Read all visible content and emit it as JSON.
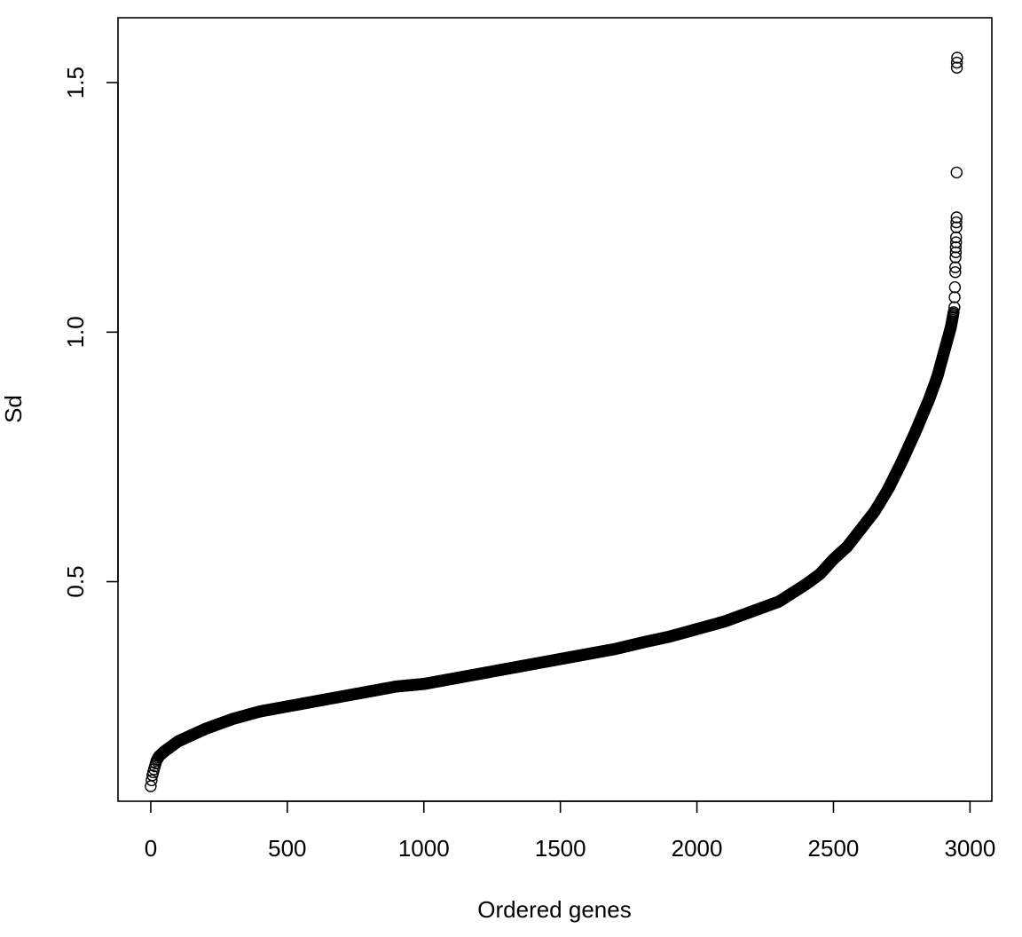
{
  "chart_data": {
    "type": "scatter",
    "title": "",
    "xlabel": "Ordered genes",
    "ylabel": "Sd",
    "xlim": [
      -120,
      3080
    ],
    "ylim": [
      0.06,
      1.63
    ],
    "x_ticks": [
      0,
      500,
      1000,
      1500,
      2000,
      2500,
      3000
    ],
    "x_tick_labels": [
      "0",
      "500",
      "1000",
      "1500",
      "2000",
      "2500",
      "3000"
    ],
    "y_ticks": [
      0.5,
      1.0,
      1.5
    ],
    "y_tick_labels": [
      "0.5",
      "1.0",
      "1.5"
    ],
    "grid": false,
    "legend": "none",
    "marker": "open-circle",
    "color": "#000000",
    "series": [
      {
        "n_points": 2950,
        "curve_x": [
          0,
          5,
          10,
          20,
          30,
          50,
          100,
          200,
          300,
          400,
          500,
          600,
          700,
          800,
          900,
          1000,
          1100,
          1200,
          1300,
          1400,
          1500,
          1600,
          1700,
          1800,
          1900,
          2000,
          2100,
          2200,
          2300,
          2400,
          2450,
          2500,
          2550,
          2600,
          2650,
          2700,
          2750,
          2800,
          2850,
          2880,
          2900,
          2910,
          2920,
          2930,
          2940
        ],
        "curve_y": [
          0.09,
          0.11,
          0.12,
          0.14,
          0.15,
          0.16,
          0.18,
          0.205,
          0.225,
          0.24,
          0.25,
          0.26,
          0.27,
          0.28,
          0.29,
          0.295,
          0.305,
          0.315,
          0.325,
          0.335,
          0.345,
          0.355,
          0.365,
          0.378,
          0.39,
          0.405,
          0.42,
          0.44,
          0.46,
          0.495,
          0.515,
          0.545,
          0.57,
          0.605,
          0.64,
          0.685,
          0.74,
          0.8,
          0.865,
          0.91,
          0.95,
          0.97,
          0.99,
          1.01,
          1.04
        ],
        "tail_points": [
          {
            "x": 2943,
            "y": 1.05
          },
          {
            "x": 2944,
            "y": 1.07
          },
          {
            "x": 2945,
            "y": 1.09
          },
          {
            "x": 2946,
            "y": 1.12
          },
          {
            "x": 2946,
            "y": 1.13
          },
          {
            "x": 2947,
            "y": 1.15
          },
          {
            "x": 2948,
            "y": 1.16
          },
          {
            "x": 2948,
            "y": 1.17
          },
          {
            "x": 2949,
            "y": 1.18
          },
          {
            "x": 2949,
            "y": 1.19
          },
          {
            "x": 2950,
            "y": 1.21
          },
          {
            "x": 2950,
            "y": 1.22
          },
          {
            "x": 2951,
            "y": 1.23
          },
          {
            "x": 2951,
            "y": 1.32
          },
          {
            "x": 2952,
            "y": 1.53
          },
          {
            "x": 2952,
            "y": 1.54
          },
          {
            "x": 2953,
            "y": 1.55
          }
        ]
      }
    ]
  }
}
